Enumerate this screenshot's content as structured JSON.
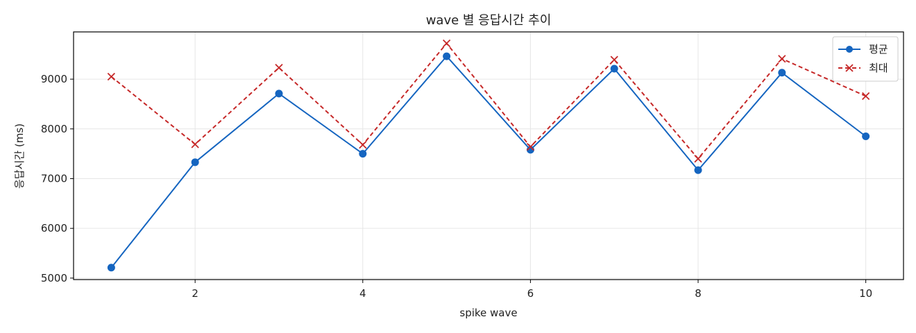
{
  "chart_data": {
    "type": "line",
    "title": "wave 별 응답시간 추이",
    "xlabel": "spike wave",
    "ylabel": "응답시간 (ms)",
    "x": [
      1,
      2,
      3,
      4,
      5,
      6,
      7,
      8,
      9,
      10
    ],
    "xlim": [
      0.55,
      10.45
    ],
    "ylim": [
      4970,
      9950
    ],
    "xticks": [
      2,
      4,
      6,
      8,
      10
    ],
    "yticks": [
      5000,
      6000,
      7000,
      8000,
      9000
    ],
    "grid": true,
    "legend_position": "top-right",
    "series": [
      {
        "name": "평균",
        "values": [
          5210,
          7330,
          8710,
          7500,
          9460,
          7580,
          9210,
          7170,
          9130,
          7850
        ],
        "color": "#1565c0",
        "line_style": "solid",
        "marker": "circle"
      },
      {
        "name": "최대",
        "values": [
          9050,
          7690,
          9230,
          7680,
          9720,
          7640,
          9390,
          7400,
          9410,
          8660
        ],
        "color": "#c62828",
        "line_style": "dashed",
        "marker": "x"
      }
    ]
  }
}
